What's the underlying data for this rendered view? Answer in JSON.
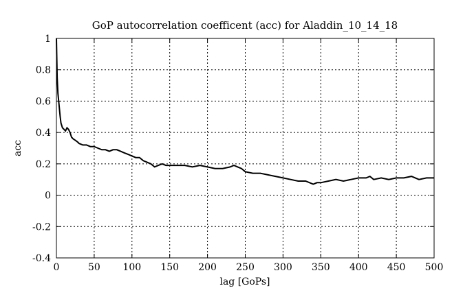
{
  "chart_data": {
    "type": "line",
    "title": "GoP autocorrelation coefficent (acc) for Aladdin_10_14_18",
    "xlabel": "lag [GoPs]",
    "ylabel": "acc",
    "xlim": [
      0,
      500
    ],
    "ylim": [
      -0.4,
      1
    ],
    "xticks": [
      0,
      50,
      100,
      150,
      200,
      250,
      300,
      350,
      400,
      450,
      500
    ],
    "yticks": [
      -0.4,
      -0.2,
      0,
      0.2,
      0.4,
      0.6,
      0.8,
      1
    ],
    "ytick_labels": [
      "-0.4",
      "-0.2",
      "0",
      "0.2",
      "0.4",
      "0.6",
      "0.8",
      "1"
    ],
    "grid": true,
    "series": [
      {
        "color": "#000000",
        "x": [
          0,
          1,
          2,
          3,
          4,
          5,
          6,
          8,
          10,
          12,
          14,
          16,
          18,
          20,
          22,
          25,
          28,
          30,
          35,
          40,
          45,
          50,
          55,
          60,
          65,
          70,
          75,
          80,
          85,
          90,
          95,
          100,
          105,
          110,
          115,
          120,
          125,
          130,
          135,
          140,
          145,
          150,
          160,
          170,
          180,
          190,
          200,
          210,
          220,
          230,
          235,
          240,
          245,
          250,
          260,
          270,
          280,
          290,
          300,
          310,
          320,
          330,
          340,
          345,
          350,
          360,
          370,
          380,
          390,
          400,
          410,
          415,
          420,
          430,
          440,
          450,
          460,
          470,
          480,
          490,
          500
        ],
        "y": [
          1.0,
          0.75,
          0.65,
          0.6,
          0.55,
          0.5,
          0.46,
          0.43,
          0.42,
          0.41,
          0.43,
          0.42,
          0.4,
          0.37,
          0.36,
          0.35,
          0.34,
          0.33,
          0.32,
          0.32,
          0.31,
          0.31,
          0.3,
          0.29,
          0.29,
          0.28,
          0.29,
          0.29,
          0.28,
          0.27,
          0.26,
          0.25,
          0.24,
          0.24,
          0.22,
          0.21,
          0.2,
          0.18,
          0.19,
          0.2,
          0.19,
          0.19,
          0.19,
          0.19,
          0.18,
          0.19,
          0.18,
          0.17,
          0.17,
          0.18,
          0.19,
          0.18,
          0.17,
          0.15,
          0.14,
          0.14,
          0.13,
          0.12,
          0.11,
          0.1,
          0.09,
          0.09,
          0.07,
          0.08,
          0.08,
          0.09,
          0.1,
          0.09,
          0.1,
          0.11,
          0.11,
          0.12,
          0.1,
          0.11,
          0.1,
          0.11,
          0.11,
          0.12,
          0.1,
          0.11,
          0.11
        ]
      }
    ]
  }
}
